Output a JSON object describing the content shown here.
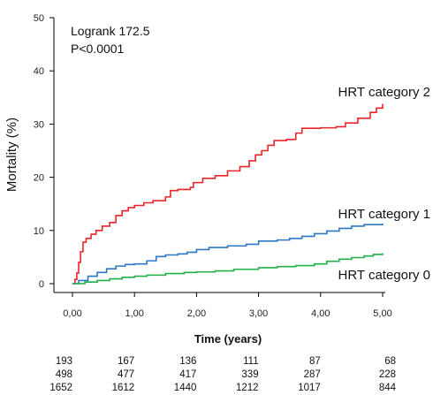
{
  "annotations": {
    "logrank": "Logrank 172.5",
    "pvalue": "P<0.0001"
  },
  "chart_data": {
    "type": "line",
    "title": "",
    "xlabel": "Time (years)",
    "ylabel": "Mortality (%)",
    "xlim": [
      0,
      5
    ],
    "ylim": [
      0,
      50
    ],
    "x_ticks": [
      0,
      1,
      2,
      3,
      4,
      5
    ],
    "x_tick_labels": [
      "0,00",
      "1,00",
      "2,00",
      "3,00",
      "4,00",
      "5,00"
    ],
    "y_ticks": [
      0,
      10,
      20,
      30,
      40,
      50
    ],
    "y_tick_labels": [
      "0",
      "10",
      "20",
      "30",
      "40",
      "50"
    ],
    "grid": false,
    "legend": "none",
    "series": [
      {
        "name": "HRT category 2",
        "color": "#e8252b",
        "points": [
          [
            0,
            0
          ],
          [
            0.04,
            0.8
          ],
          [
            0.07,
            2.0
          ],
          [
            0.1,
            4.0
          ],
          [
            0.13,
            6.0
          ],
          [
            0.17,
            7.8
          ],
          [
            0.22,
            8.5
          ],
          [
            0.3,
            9.3
          ],
          [
            0.38,
            10.0
          ],
          [
            0.48,
            10.8
          ],
          [
            0.6,
            11.5
          ],
          [
            0.7,
            12.8
          ],
          [
            0.8,
            13.7
          ],
          [
            0.9,
            14.3
          ],
          [
            1.0,
            14.7
          ],
          [
            1.15,
            15.2
          ],
          [
            1.3,
            15.6
          ],
          [
            1.5,
            16.3
          ],
          [
            1.58,
            17.5
          ],
          [
            1.7,
            17.7
          ],
          [
            1.9,
            18.1
          ],
          [
            1.95,
            19.0
          ],
          [
            2.1,
            19.8
          ],
          [
            2.3,
            20.3
          ],
          [
            2.5,
            21.2
          ],
          [
            2.7,
            22.0
          ],
          [
            2.85,
            23.1
          ],
          [
            2.95,
            24.2
          ],
          [
            3.05,
            25.0
          ],
          [
            3.15,
            26.0
          ],
          [
            3.25,
            26.9
          ],
          [
            3.45,
            27.1
          ],
          [
            3.6,
            28.3
          ],
          [
            3.7,
            29.2
          ],
          [
            4.0,
            29.3
          ],
          [
            4.25,
            29.5
          ],
          [
            4.4,
            30.2
          ],
          [
            4.6,
            31.1
          ],
          [
            4.8,
            32.2
          ],
          [
            4.9,
            33.0
          ],
          [
            5.0,
            33.8
          ]
        ]
      },
      {
        "name": "HRT category 1",
        "color": "#2e78c2",
        "points": [
          [
            0,
            0
          ],
          [
            0.1,
            0.6
          ],
          [
            0.25,
            1.4
          ],
          [
            0.4,
            2.1
          ],
          [
            0.55,
            2.8
          ],
          [
            0.7,
            3.3
          ],
          [
            0.85,
            3.6
          ],
          [
            1.0,
            3.7
          ],
          [
            1.2,
            4.3
          ],
          [
            1.35,
            5.1
          ],
          [
            1.5,
            5.4
          ],
          [
            1.7,
            5.6
          ],
          [
            1.85,
            5.9
          ],
          [
            2.0,
            6.4
          ],
          [
            2.2,
            6.8
          ],
          [
            2.5,
            7.1
          ],
          [
            2.8,
            7.4
          ],
          [
            3.0,
            8.0
          ],
          [
            3.3,
            8.2
          ],
          [
            3.5,
            8.5
          ],
          [
            3.7,
            8.9
          ],
          [
            3.9,
            9.4
          ],
          [
            4.1,
            9.9
          ],
          [
            4.3,
            10.4
          ],
          [
            4.5,
            10.8
          ],
          [
            4.7,
            11.1
          ],
          [
            5.0,
            11.3
          ]
        ]
      },
      {
        "name": "HRT category 0",
        "color": "#22b04a",
        "points": [
          [
            0,
            0
          ],
          [
            0.2,
            0.3
          ],
          [
            0.4,
            0.6
          ],
          [
            0.6,
            0.9
          ],
          [
            0.8,
            1.2
          ],
          [
            1.0,
            1.4
          ],
          [
            1.2,
            1.6
          ],
          [
            1.5,
            1.9
          ],
          [
            1.8,
            2.1
          ],
          [
            2.0,
            2.2
          ],
          [
            2.3,
            2.4
          ],
          [
            2.6,
            2.7
          ],
          [
            3.0,
            3.0
          ],
          [
            3.3,
            3.2
          ],
          [
            3.6,
            3.4
          ],
          [
            3.9,
            3.7
          ],
          [
            4.1,
            4.2
          ],
          [
            4.3,
            4.6
          ],
          [
            4.5,
            4.9
          ],
          [
            4.7,
            5.2
          ],
          [
            4.85,
            5.5
          ],
          [
            5.0,
            5.7
          ]
        ]
      }
    ],
    "numbers_at_risk": [
      [
        "193",
        "167",
        "136",
        "111",
        "87",
        "68"
      ],
      [
        "498",
        "477",
        "417",
        "339",
        "287",
        "228"
      ],
      [
        "1652",
        "1612",
        "1440",
        "1212",
        "1017",
        "844"
      ]
    ]
  }
}
